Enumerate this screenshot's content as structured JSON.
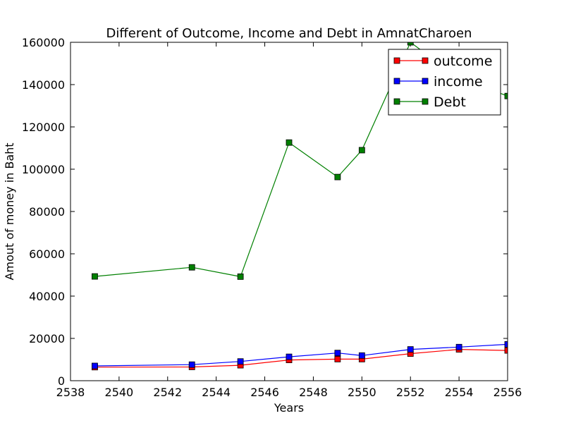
{
  "chart_data": {
    "type": "line",
    "title": "Different of Outcome, Income and Debt in AmnatCharoen",
    "xlabel": "Years",
    "ylabel": "Amout of money in Baht",
    "xlim": [
      2538,
      2556
    ],
    "ylim": [
      0,
      160000
    ],
    "xticks": [
      2538,
      2540,
      2542,
      2544,
      2546,
      2548,
      2550,
      2552,
      2554,
      2556
    ],
    "yticks": [
      0,
      20000,
      40000,
      60000,
      80000,
      100000,
      120000,
      140000,
      160000
    ],
    "x": [
      2539,
      2543,
      2545,
      2547,
      2549,
      2550,
      2552,
      2554,
      2556
    ],
    "legend_position": "top-right",
    "grid": false,
    "series": [
      {
        "name": "outcome",
        "color": "#ff0000",
        "marker": "square",
        "values": [
          6400,
          6500,
          7300,
          9800,
          10200,
          10200,
          12800,
          14800,
          14300
        ]
      },
      {
        "name": "income",
        "color": "#0000ff",
        "marker": "square",
        "values": [
          7000,
          7600,
          9100,
          11300,
          13100,
          11900,
          14800,
          15900,
          17200
        ]
      },
      {
        "name": "Debt",
        "color": "#008000",
        "marker": "square",
        "values": [
          49300,
          53600,
          49200,
          112600,
          96300,
          109000,
          160000,
          143000,
          134600
        ]
      }
    ]
  }
}
